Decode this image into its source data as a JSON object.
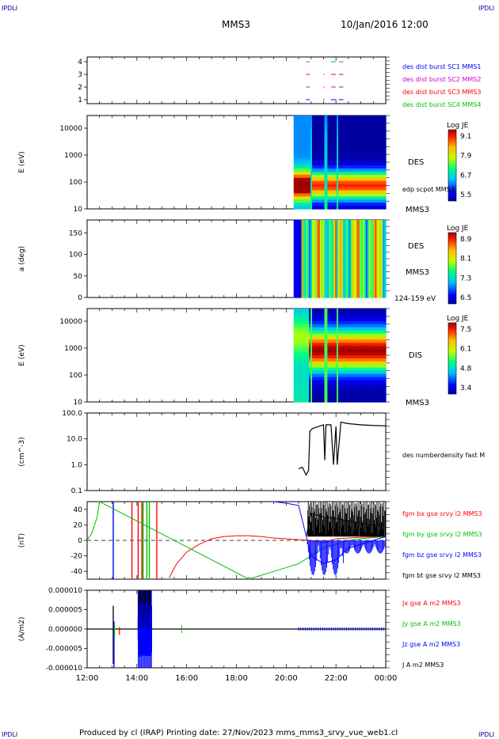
{
  "corner_tags": {
    "tl": "IPDLI",
    "tr": "IPDLI",
    "bl": "IPDLI",
    "br": "IPDLI"
  },
  "header": {
    "spacecraft": "MMS3",
    "datetime": "10/Jan/2016 12:00"
  },
  "footer": "Produced by cl (IRAP)   Printing date: 27/Nov/2023   mms_mms3_srvy_vue_web1.cl",
  "colors": {
    "blue": "#0000ff",
    "magenta": "#d000d0",
    "red": "#ff0000",
    "green": "#00c000",
    "black": "#000000"
  },
  "chart_data": [
    {
      "id": "p1",
      "type": "scatter",
      "yticks": [
        "1",
        "2",
        "3",
        "4"
      ],
      "legend": [
        {
          "label": "des dist burst SC1 MMS1",
          "color": "#0000ff"
        },
        {
          "label": "des dist burst SC2 MMS2",
          "color": "#d000d0"
        },
        {
          "label": "des dist burst SC3 MMS3",
          "color": "#ff0000"
        },
        {
          "label": "des dist burst SC4 MMS4",
          "color": "#00c000"
        }
      ],
      "series": [
        {
          "level": 1,
          "color": "#0000ff",
          "segments": [
            [
              20.8,
              20.95
            ],
            [
              21.5,
              21.55
            ],
            [
              21.8,
              22.3
            ]
          ]
        },
        {
          "level": 2,
          "color": "#d000d0",
          "segments": [
            [
              20.8,
              20.95
            ],
            [
              21.5,
              21.55
            ],
            [
              21.8,
              22.3
            ]
          ]
        },
        {
          "level": 3,
          "color": "#ff0000",
          "segments": [
            [
              20.8,
              20.95
            ],
            [
              21.5,
              21.55
            ],
            [
              21.8,
              22.3
            ]
          ]
        },
        {
          "level": 4,
          "color": "#00c000",
          "segments": [
            [
              20.8,
              20.95
            ],
            [
              21.8,
              22.3
            ]
          ]
        }
      ]
    },
    {
      "id": "p2",
      "type": "heatmap",
      "ylabel": "E (eV)",
      "yticks": [
        "10",
        "100",
        "1000",
        "10000"
      ],
      "colorbar": {
        "title": "Log JE",
        "ticks": [
          "9.1",
          "7.9",
          "6.7",
          "5.5"
        ]
      },
      "labels": [
        "DES",
        "edp scpot MMS3",
        "MMS3"
      ]
    },
    {
      "id": "p3",
      "type": "heatmap",
      "ylabel": "a (deg)",
      "yticks": [
        "0",
        "50",
        "100",
        "150"
      ],
      "colorbar": {
        "title": "Log JE",
        "ticks": [
          "8.9",
          "8.1",
          "7.3",
          "6.5"
        ]
      },
      "labels": [
        "DES",
        "MMS3",
        "124-159 eV"
      ]
    },
    {
      "id": "p4",
      "type": "heatmap",
      "ylabel": "E (eV)",
      "yticks": [
        "10",
        "100",
        "1000",
        "10000"
      ],
      "colorbar": {
        "title": "Log JE",
        "ticks": [
          "7.5",
          "6.1",
          "4.8",
          "3.4"
        ]
      },
      "labels": [
        "DIS",
        "MMS3"
      ]
    },
    {
      "id": "p5",
      "type": "line",
      "ylabel": "(cm^-3)",
      "yscale": "log",
      "yticks": [
        "0.1",
        "1.0",
        "10.0",
        "100.0"
      ],
      "legend": [
        {
          "label": "des numberdensity fast M",
          "color": "#000000"
        }
      ],
      "series": [
        {
          "name": "des numberdensity fast M",
          "color": "#000000",
          "x": [
            20.5,
            20.65,
            20.8,
            20.9,
            20.95,
            21.0,
            21.05,
            21.2,
            21.5,
            21.55,
            21.6,
            21.8,
            21.9,
            22.0,
            22.05,
            22.2,
            22.4,
            22.6,
            23.0,
            23.5,
            24.0
          ],
          "y": [
            0.7,
            0.8,
            0.4,
            0.6,
            20,
            22,
            25,
            28,
            35,
            1.5,
            35,
            35,
            1.0,
            30,
            1.0,
            45,
            40,
            38,
            35,
            33,
            32
          ]
        }
      ]
    },
    {
      "id": "p6",
      "type": "line",
      "ylabel": "(nT)",
      "yticks": [
        "-40",
        "-20",
        "0",
        "20",
        "40"
      ],
      "ylim": [
        -50,
        50
      ],
      "legend": [
        {
          "label": "fgm bx gse srvy l2 MMS3",
          "color": "#ff0000"
        },
        {
          "label": "fgm by gse srvy l2 MMS3",
          "color": "#00c000"
        },
        {
          "label": "fgm bz gse srvy l2 MMS3",
          "color": "#0000ff"
        },
        {
          "label": "fgm bt gse srvy l2 MMS3",
          "color": "#000000"
        }
      ],
      "series": [
        {
          "name": "fgm bx gse srvy l2 MMS3",
          "color": "#ff0000",
          "x": [
            15.3,
            15.6,
            16.0,
            16.5,
            17.0,
            17.5,
            18.0,
            18.5,
            19.0,
            19.5,
            20.0,
            20.5,
            21.0,
            21.5,
            22.0,
            22.5,
            23.0,
            24.0
          ],
          "y": [
            -48,
            -30,
            -15,
            -5,
            2,
            5,
            6,
            6,
            5,
            3,
            2,
            1,
            0,
            -3,
            2,
            3,
            4,
            5
          ]
        },
        {
          "name": "fgm by gse srvy l2 MMS3",
          "color": "#00c000",
          "x": [
            12.0,
            12.2,
            12.4,
            12.5,
            18.5,
            19.0,
            19.5,
            20.0,
            20.5,
            21.0,
            21.5,
            22.0,
            22.5,
            23.0,
            24.0
          ],
          "y": [
            0,
            10,
            30,
            50,
            -50,
            -45,
            -40,
            -35,
            -30,
            -20,
            -10,
            -5,
            0,
            2,
            5
          ]
        },
        {
          "name": "fgm bz gse srvy l2 MMS3",
          "color": "#0000ff",
          "x": [
            19.5,
            20.0,
            20.5,
            21.0,
            21.5,
            22.0,
            22.5,
            23.0,
            24.0
          ],
          "y": [
            50,
            48,
            45,
            -20,
            -30,
            -25,
            -10,
            -5,
            5
          ]
        },
        {
          "name": "fgm bt gse srvy l2 MMS3",
          "color": "#000000",
          "x": [
            20.8,
            21.0,
            21.5,
            22.0,
            22.5,
            23.0,
            23.5,
            24.0
          ],
          "y": [
            5,
            35,
            30,
            28,
            25,
            22,
            20,
            20
          ]
        }
      ]
    },
    {
      "id": "p7",
      "type": "line",
      "ylabel": "(A/m2)",
      "yticks": [
        "-0.000010",
        "-0.000005",
        "0.000000",
        "0.000005",
        "0.000010"
      ],
      "ylim": [
        -1e-05,
        1e-05
      ],
      "xticks": [
        "12:00",
        "14:00",
        "16:00",
        "18:00",
        "20:00",
        "22:00",
        "00:00"
      ],
      "legend": [
        {
          "label": "Jx gse A m2 MMS3",
          "color": "#ff0000"
        },
        {
          "label": "Jy gse A m2 MMS3",
          "color": "#00c000"
        },
        {
          "label": "Jz gse A m2 MMS3",
          "color": "#0000ff"
        },
        {
          "label": "J A m2 MMS3",
          "color": "#000000"
        }
      ]
    }
  ]
}
